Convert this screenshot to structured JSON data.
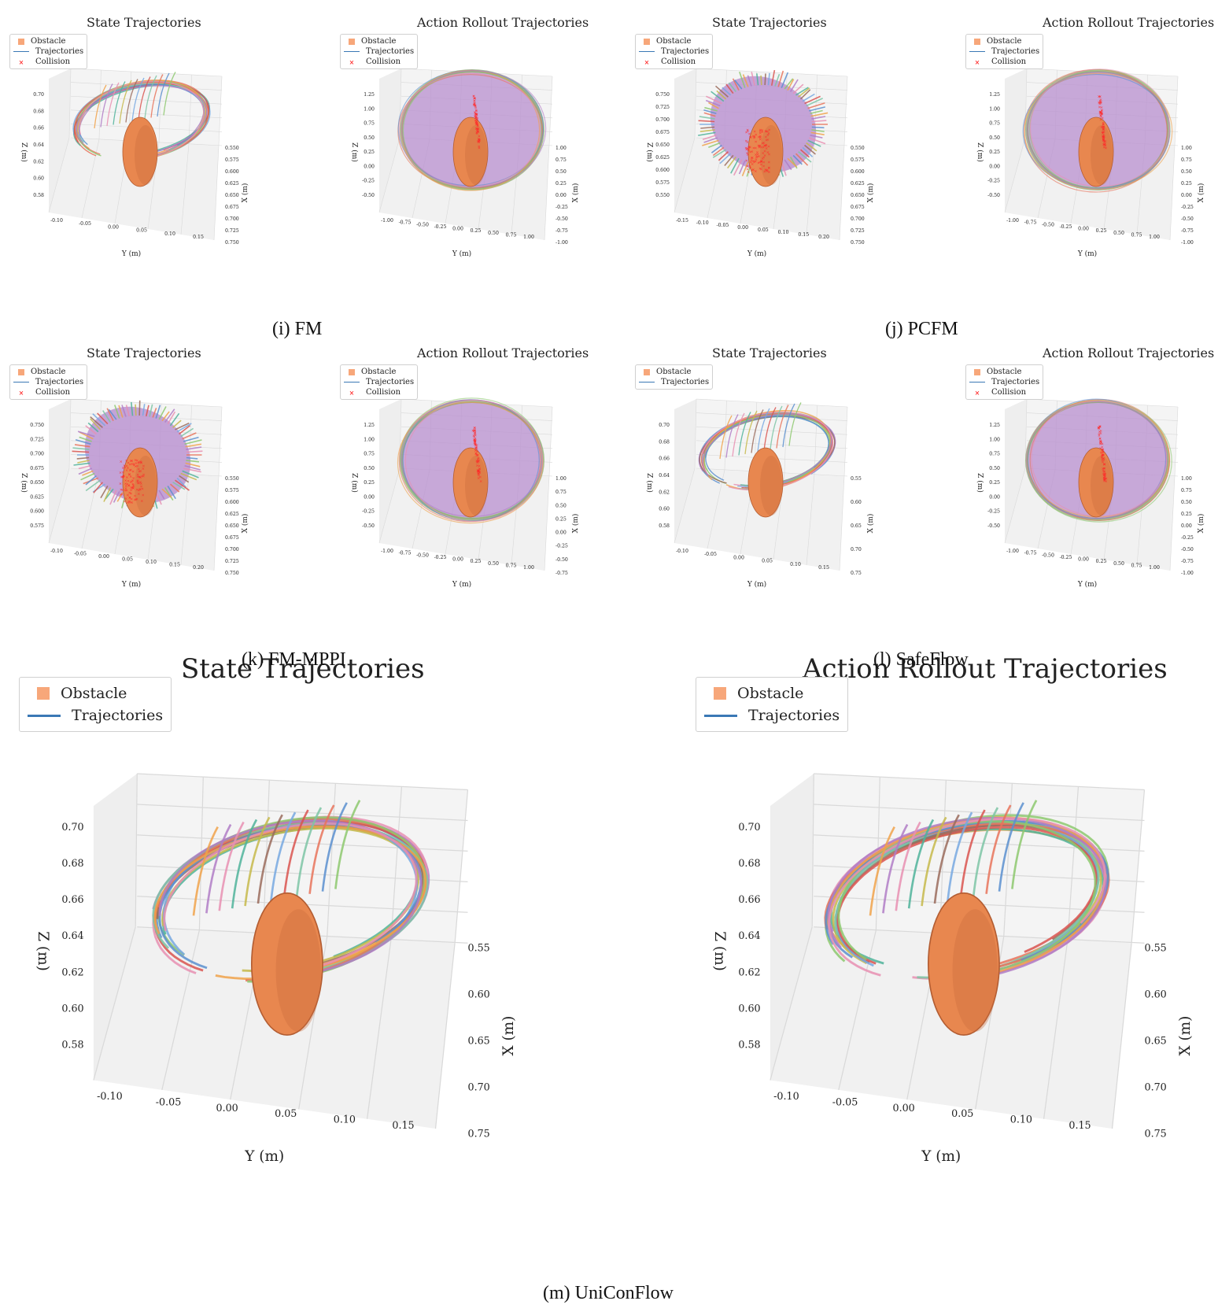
{
  "captions": {
    "i": "(i) FM",
    "j": "(j) PCFM",
    "k": "(k) FM-MPPI",
    "l": "(l) SafeFlow",
    "m": "(m) UniConFlow"
  },
  "legend_labels": {
    "obstacle": "Obstacle",
    "trajectories": "Trajectories",
    "collision": "Collision"
  },
  "colors": {
    "obstacle": "#e8874f",
    "obstacle_swatch": "#f7a77a",
    "trajectory_line": "#3a78b5",
    "collision": "#ff2a2a",
    "grid": "#d9d9d9",
    "pane": "#f4f4f4"
  },
  "chart_data": [
    {
      "id": "fm-state",
      "type": "line",
      "group": "i",
      "title": "State Trajectories",
      "xlabel": "Y (m)",
      "ylabel": "Z (m)",
      "zlabel": "X (m)",
      "y_ticks": [
        "-0.10",
        "-0.05",
        "0.00",
        "0.05",
        "0.10",
        "0.15"
      ],
      "z_ticks": [
        "0.70",
        "0.68",
        "0.66",
        "0.64",
        "0.62",
        "0.60",
        "0.58"
      ],
      "x_ticks": [
        "0.550",
        "0.575",
        "0.600",
        "0.625",
        "0.650",
        "0.675",
        "0.700",
        "0.725",
        "0.750"
      ],
      "legend": [
        "Obstacle",
        "Trajectories",
        "Collision"
      ],
      "style": "ring",
      "collision_markers": false
    },
    {
      "id": "fm-action",
      "type": "line",
      "group": "i",
      "title": "Action Rollout Trajectories",
      "xlabel": "Y (m)",
      "ylabel": "Z (m)",
      "zlabel": "X (m)",
      "y_ticks": [
        "-1.00",
        "-0.75",
        "-0.50",
        "-0.25",
        "0.00",
        "0.25",
        "0.50",
        "0.75",
        "1.00"
      ],
      "z_ticks": [
        "1.25",
        "1.00",
        "0.75",
        "0.50",
        "0.25",
        "0.00",
        "-0.25",
        "-0.50"
      ],
      "x_ticks": [
        "1.00",
        "0.75",
        "0.50",
        "0.25",
        "0.00",
        "-0.25",
        "-0.50",
        "-0.75",
        "-1.00"
      ],
      "legend": [
        "Obstacle",
        "Trajectories",
        "Collision"
      ],
      "style": "disc",
      "collision_markers": true
    },
    {
      "id": "pcfm-state",
      "type": "line",
      "group": "j",
      "title": "State Trajectories",
      "xlabel": "Y (m)",
      "ylabel": "Z (m)",
      "zlabel": "X (m)",
      "y_ticks": [
        "-0.15",
        "-0.10",
        "-0.05",
        "0.00",
        "0.05",
        "0.10",
        "0.15",
        "0.20"
      ],
      "z_ticks": [
        "0.750",
        "0.725",
        "0.700",
        "0.675",
        "0.650",
        "0.625",
        "0.600",
        "0.575",
        "0.550"
      ],
      "x_ticks": [
        "0.550",
        "0.575",
        "0.600",
        "0.625",
        "0.650",
        "0.675",
        "0.700",
        "0.725",
        "0.750"
      ],
      "legend": [
        "Obstacle",
        "Trajectories",
        "Collision"
      ],
      "style": "spiky",
      "collision_markers": true
    },
    {
      "id": "pcfm-action",
      "type": "line",
      "group": "j",
      "title": "Action Rollout Trajectories",
      "xlabel": "Y (m)",
      "ylabel": "Z (m)",
      "zlabel": "X (m)",
      "y_ticks": [
        "-1.00",
        "-0.75",
        "-0.50",
        "-0.25",
        "0.00",
        "0.25",
        "0.50",
        "0.75",
        "1.00"
      ],
      "z_ticks": [
        "1.25",
        "1.00",
        "0.75",
        "0.50",
        "0.25",
        "0.00",
        "-0.25",
        "-0.50"
      ],
      "x_ticks": [
        "1.00",
        "0.75",
        "0.50",
        "0.25",
        "0.00",
        "-0.25",
        "-0.50",
        "-0.75",
        "-1.00"
      ],
      "legend": [
        "Obstacle",
        "Trajectories",
        "Collision"
      ],
      "style": "disc",
      "collision_markers": true
    },
    {
      "id": "fmmppi-state",
      "type": "line",
      "group": "k",
      "title": "State Trajectories",
      "xlabel": "Y (m)",
      "ylabel": "Z (m)",
      "zlabel": "X (m)",
      "y_ticks": [
        "-0.10",
        "-0.05",
        "0.00",
        "0.05",
        "0.10",
        "0.15",
        "0.20"
      ],
      "z_ticks": [
        "0.750",
        "0.725",
        "0.700",
        "0.675",
        "0.650",
        "0.625",
        "0.600",
        "0.575"
      ],
      "x_ticks": [
        "0.550",
        "0.575",
        "0.600",
        "0.625",
        "0.650",
        "0.675",
        "0.700",
        "0.725",
        "0.750"
      ],
      "legend": [
        "Obstacle",
        "Trajectories",
        "Collision"
      ],
      "style": "spiky",
      "collision_markers": true
    },
    {
      "id": "fmmppi-action",
      "type": "line",
      "group": "k",
      "title": "Action Rollout Trajectories",
      "xlabel": "Y (m)",
      "ylabel": "Z (m)",
      "zlabel": "X (m)",
      "y_ticks": [
        "-1.00",
        "-0.75",
        "-0.50",
        "-0.25",
        "0.00",
        "0.25",
        "0.50",
        "0.75",
        "1.00"
      ],
      "z_ticks": [
        "1.25",
        "1.00",
        "0.75",
        "0.50",
        "0.25",
        "0.00",
        "-0.25",
        "-0.50"
      ],
      "x_ticks": [
        "1.00",
        "0.75",
        "0.50",
        "0.25",
        "0.00",
        "-0.25",
        "-0.50",
        "-0.75"
      ],
      "legend": [
        "Obstacle",
        "Trajectories",
        "Collision"
      ],
      "style": "disc",
      "collision_markers": true
    },
    {
      "id": "safeflow-state",
      "type": "line",
      "group": "l",
      "title": "State Trajectories",
      "xlabel": "Y (m)",
      "ylabel": "Z (m)",
      "zlabel": "X (m)",
      "y_ticks": [
        "-0.10",
        "-0.05",
        "0.00",
        "0.05",
        "0.10",
        "0.15"
      ],
      "z_ticks": [
        "0.70",
        "0.68",
        "0.66",
        "0.64",
        "0.62",
        "0.60",
        "0.58"
      ],
      "x_ticks": [
        "0.55",
        "0.60",
        "0.65",
        "0.70",
        "0.75"
      ],
      "legend": [
        "Obstacle",
        "Trajectories"
      ],
      "style": "ring",
      "collision_markers": false
    },
    {
      "id": "safeflow-action",
      "type": "line",
      "group": "l",
      "title": "Action Rollout Trajectories",
      "xlabel": "Y (m)",
      "ylabel": "Z (m)",
      "zlabel": "X (m)",
      "y_ticks": [
        "-1.00",
        "-0.75",
        "-0.50",
        "-0.25",
        "0.00",
        "0.25",
        "0.50",
        "0.75",
        "1.00"
      ],
      "z_ticks": [
        "1.25",
        "1.00",
        "0.75",
        "0.50",
        "0.25",
        "0.00",
        "-0.25",
        "-0.50"
      ],
      "x_ticks": [
        "1.00",
        "0.75",
        "0.50",
        "0.25",
        "0.00",
        "-0.25",
        "-0.50",
        "-0.75",
        "-1.00"
      ],
      "legend": [
        "Obstacle",
        "Trajectories",
        "Collision"
      ],
      "style": "disc",
      "collision_markers": true
    },
    {
      "id": "uniconflow-state",
      "type": "line",
      "group": "m",
      "title": "State Trajectories",
      "xlabel": "Y (m)",
      "ylabel": "Z (m)",
      "zlabel": "X (m)",
      "y_ticks": [
        "-0.10",
        "-0.05",
        "0.00",
        "0.05",
        "0.10",
        "0.15"
      ],
      "z_ticks": [
        "0.70",
        "0.68",
        "0.66",
        "0.64",
        "0.62",
        "0.60",
        "0.58"
      ],
      "x_ticks": [
        "0.55",
        "0.60",
        "0.65",
        "0.70",
        "0.75"
      ],
      "legend": [
        "Obstacle",
        "Trajectories"
      ],
      "style": "ring",
      "collision_markers": false
    },
    {
      "id": "uniconflow-action",
      "type": "line",
      "group": "m",
      "title": "Action Rollout Trajectories",
      "xlabel": "Y (m)",
      "ylabel": "Z (m)",
      "zlabel": "X (m)",
      "y_ticks": [
        "-0.10",
        "-0.05",
        "0.00",
        "0.05",
        "0.10",
        "0.15"
      ],
      "z_ticks": [
        "0.70",
        "0.68",
        "0.66",
        "0.64",
        "0.62",
        "0.60",
        "0.58"
      ],
      "x_ticks": [
        "0.55",
        "0.60",
        "0.65",
        "0.70",
        "0.75"
      ],
      "legend": [
        "Obstacle",
        "Trajectories"
      ],
      "style": "ring",
      "collision_markers": false
    }
  ]
}
